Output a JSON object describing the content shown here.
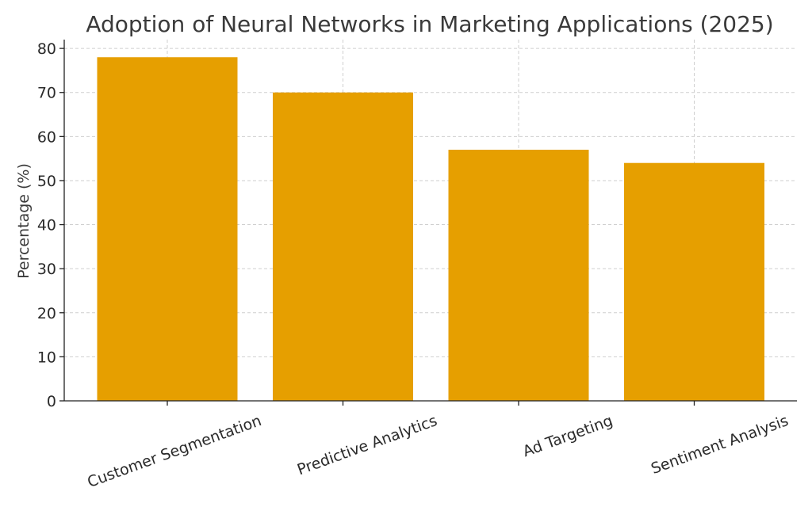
{
  "chart_data": {
    "type": "bar",
    "title": "Adoption of Neural Networks in Marketing Applications (2025)",
    "xlabel": "",
    "ylabel": "Percentage (%)",
    "categories": [
      "Customer Segmentation",
      "Predictive Analytics",
      "Ad Targeting",
      "Sentiment Analysis"
    ],
    "values": [
      78,
      70,
      57,
      54
    ],
    "ylim": [
      0,
      82
    ],
    "yticks": [
      "0",
      "10",
      "20",
      "30",
      "40",
      "50",
      "60",
      "70",
      "80"
    ],
    "grid": true,
    "bar_color": "#E69F00",
    "xtick_rotation_deg": -20
  }
}
